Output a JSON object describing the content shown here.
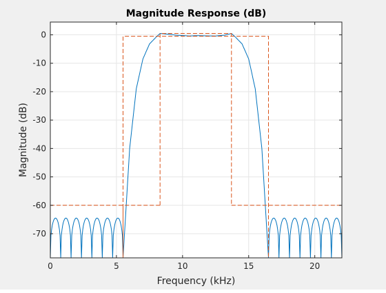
{
  "chart_data": {
    "type": "line",
    "title": "Magnitude Response (dB)",
    "xlabel": "Frequency (kHz)",
    "ylabel": "Magnitude (dB)",
    "xlim": [
      0,
      22.05
    ],
    "ylim": [
      -78.5,
      4.5
    ],
    "xticks": [
      0,
      5,
      10,
      15,
      20
    ],
    "yticks": [
      0,
      -10,
      -20,
      -30,
      -40,
      -50,
      -60,
      -70
    ],
    "grid": true,
    "legend": "none",
    "colors": {
      "response": "#0072bd",
      "mask": "#d95319",
      "grid": "#e6e6e6"
    },
    "series": [
      {
        "style": "solid",
        "passband_kHz": [
          8.3,
          13.7
        ],
        "passband_ripple_dB": 0.5,
        "stopband_edges_kHz": [
          5.5,
          16.5
        ],
        "stopband_ripple_peak_dB": -64.5,
        "x": [
          0,
          5.5,
          6.0,
          6.5,
          7.0,
          7.5,
          8.0,
          8.3,
          8.8,
          9.5,
          10.5,
          11.0,
          12.5,
          13.2,
          13.7,
          14.0,
          14.5,
          15.0,
          15.5,
          16.0,
          16.5,
          22.05
        ],
        "y": [
          -64.5,
          -78.5,
          -40,
          -19,
          -8.5,
          -3.2,
          -0.8,
          0.5,
          0.3,
          -0.1,
          -0.4,
          -0.3,
          -0.4,
          -0.1,
          0.5,
          -0.8,
          -3.2,
          -8.5,
          -19,
          -40,
          -78.5,
          -64.5
        ]
      },
      {
        "style": "dashed",
        "segments": [
          {
            "x": [
              0,
              5.5,
              5.5
            ],
            "y": [
              -60,
              -60,
              -78.5
            ]
          },
          {
            "x": [
              5.5,
              5.5,
              16.5,
              16.5
            ],
            "y": [
              -78.5,
              -0.5,
              -0.5,
              -78.5
            ]
          },
          {
            "x": [
              8.3,
              8.3,
              13.7,
              13.7
            ],
            "y": [
              -60,
              0.5,
              0.5,
              -60
            ]
          },
          {
            "x": [
              8.3,
              5.5
            ],
            "y": [
              -60,
              -60
            ]
          },
          {
            "x": [
              13.7,
              16.5,
              22.05
            ],
            "y": [
              -60,
              -60,
              -60
            ]
          }
        ]
      }
    ]
  }
}
